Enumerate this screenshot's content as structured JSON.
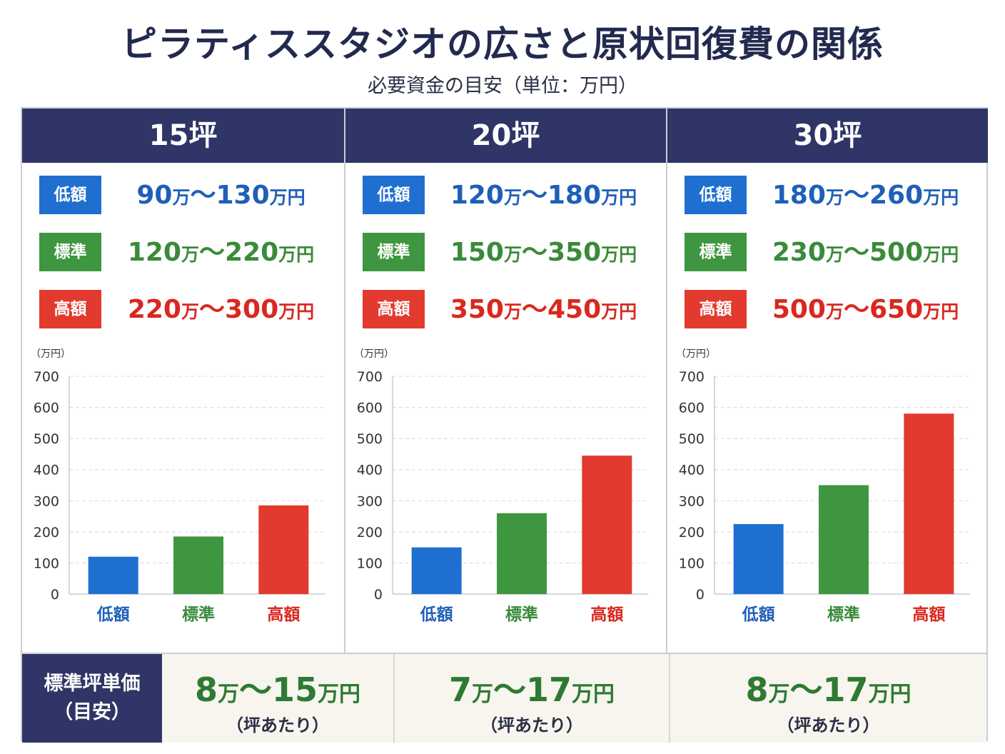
{
  "title": "ピラティススタジオの広さと原状回復費の関係",
  "subtitle": "必要資金の目安（単位：万円）",
  "colors": {
    "navy": "#2f3566",
    "low": "#1f6fd0",
    "standard": "#3f9640",
    "high": "#e23a2e",
    "low_text": "#1f5fb8",
    "standard_text": "#3a8a3a",
    "high_text": "#d9281f"
  },
  "badges": {
    "low": "低額",
    "standard": "標準",
    "high": "高額"
  },
  "columns": [
    {
      "heading": "15坪",
      "ranges": {
        "low": {
          "from": "90",
          "to": "130"
        },
        "standard": {
          "from": "120",
          "to": "220"
        },
        "high": {
          "from": "220",
          "to": "300"
        }
      }
    },
    {
      "heading": "20坪",
      "ranges": {
        "low": {
          "from": "120",
          "to": "180"
        },
        "standard": {
          "from": "150",
          "to": "350"
        },
        "high": {
          "from": "350",
          "to": "450"
        }
      }
    },
    {
      "heading": "30坪",
      "ranges": {
        "low": {
          "from": "180",
          "to": "260"
        },
        "standard": {
          "from": "230",
          "to": "500"
        },
        "high": {
          "from": "500",
          "to": "650"
        }
      }
    }
  ],
  "range_units": {
    "man": "万",
    "manen": "万円",
    "tilde": "～"
  },
  "chart_data": [
    {
      "type": "bar",
      "title": "15坪",
      "ylabel": "（万円）",
      "categories": [
        "低額",
        "標準",
        "高額"
      ],
      "values": [
        120,
        185,
        285
      ],
      "yticks": [
        0,
        100,
        200,
        300,
        400,
        500,
        600,
        700
      ],
      "ylim": [
        0,
        700
      ],
      "grid": true,
      "bar_colors": [
        "#1f6fd0",
        "#3f9640",
        "#e23a2e"
      ],
      "category_colors": [
        "#1f5fb8",
        "#3a8a3a",
        "#d9281f"
      ]
    },
    {
      "type": "bar",
      "title": "20坪",
      "ylabel": "（万円）",
      "categories": [
        "低額",
        "標準",
        "高額"
      ],
      "values": [
        150,
        260,
        445
      ],
      "yticks": [
        0,
        100,
        200,
        300,
        400,
        500,
        600,
        700
      ],
      "ylim": [
        0,
        700
      ],
      "grid": true,
      "bar_colors": [
        "#1f6fd0",
        "#3f9640",
        "#e23a2e"
      ],
      "category_colors": [
        "#1f5fb8",
        "#3a8a3a",
        "#d9281f"
      ]
    },
    {
      "type": "bar",
      "title": "30坪",
      "ylabel": "（万円）",
      "categories": [
        "低額",
        "標準",
        "高額"
      ],
      "values": [
        225,
        350,
        580
      ],
      "yticks": [
        0,
        100,
        200,
        300,
        400,
        500,
        600,
        700
      ],
      "ylim": [
        0,
        700
      ],
      "grid": true,
      "bar_colors": [
        "#1f6fd0",
        "#3f9640",
        "#e23a2e"
      ],
      "category_colors": [
        "#1f5fb8",
        "#3a8a3a",
        "#d9281f"
      ]
    }
  ],
  "footer": {
    "label_line1": "標準坪単価",
    "label_line2": "（目安）",
    "note": "（坪あたり）",
    "cells": [
      {
        "from": "8",
        "to": "15"
      },
      {
        "from": "7",
        "to": "17"
      },
      {
        "from": "8",
        "to": "17"
      }
    ]
  }
}
